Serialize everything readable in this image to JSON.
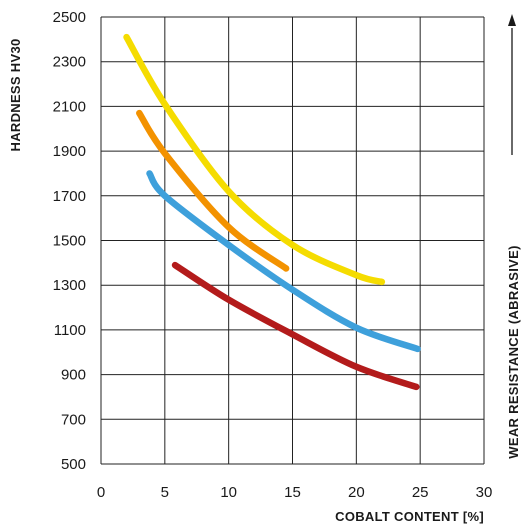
{
  "chart_data": {
    "type": "line",
    "title": "",
    "ylabel": "HARDNESS HV30",
    "xlabel": "COBALT CONTENT  [%]",
    "side_label": "WEAR RESISTANCE (ABRASIVE)",
    "xlim": [
      0,
      30
    ],
    "ylim": [
      500,
      2500
    ],
    "x_ticks": [
      "0",
      "5",
      "10",
      "15",
      "20",
      "25",
      "30"
    ],
    "y_ticks": [
      "500",
      "700",
      "900",
      "1100",
      "1300",
      "1500",
      "1700",
      "1900",
      "2100",
      "2300",
      "2500"
    ],
    "grid": true,
    "series": [
      {
        "color": "#f5dc00",
        "points": [
          [
            2,
            2410
          ],
          [
            5,
            2110
          ],
          [
            10,
            1720
          ],
          [
            15,
            1480
          ],
          [
            20,
            1345
          ],
          [
            22,
            1315
          ]
        ]
      },
      {
        "color": "#f39200",
        "points": [
          [
            3,
            2070
          ],
          [
            5,
            1890
          ],
          [
            10,
            1560
          ],
          [
            14.5,
            1375
          ]
        ]
      },
      {
        "color": "#3ea0db",
        "points": [
          [
            3.8,
            1800
          ],
          [
            5,
            1700
          ],
          [
            10,
            1480
          ],
          [
            15,
            1280
          ],
          [
            20,
            1110
          ],
          [
            24.8,
            1015
          ]
        ]
      },
      {
        "color": "#b31b1b",
        "points": [
          [
            5.8,
            1390
          ],
          [
            10,
            1235
          ],
          [
            15,
            1080
          ],
          [
            20,
            935
          ],
          [
            24.7,
            845
          ]
        ]
      }
    ]
  }
}
